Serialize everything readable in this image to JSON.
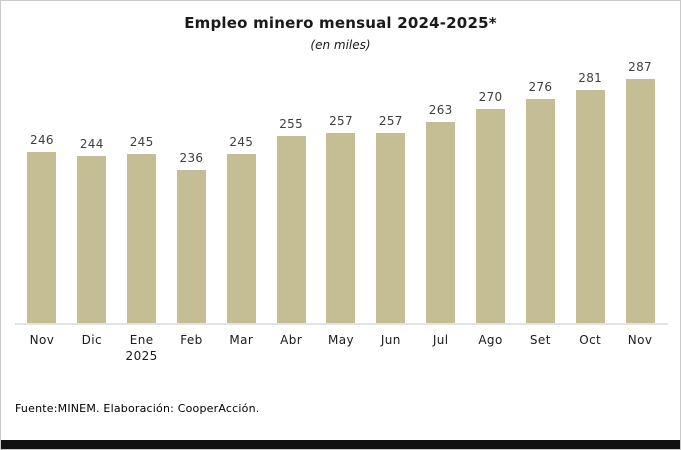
{
  "frame": {
    "background_color": "#ffffff",
    "border_color": "#c9c9c9",
    "bottom_bar_color": "#111111"
  },
  "chart_data": {
    "type": "bar",
    "title": "Empleo minero mensual 2024-2025*",
    "subtitle": "(en miles)",
    "categories": [
      "Nov",
      "Dic",
      "Ene\n2025",
      "Feb",
      "Mar",
      "Abr",
      "May",
      "Jun",
      "Jul",
      "Ago",
      "Set",
      "Oct",
      "Nov"
    ],
    "values": [
      246,
      244,
      245,
      236,
      245,
      255,
      257,
      257,
      263,
      270,
      276,
      281,
      287
    ],
    "data_labels": true,
    "bar_color": "#c5bd94",
    "value_label_color": "#3f3f3f",
    "axis_line_color": "#e3e3e3",
    "xlabel": "",
    "ylabel": "",
    "ylim": [
      150,
      300
    ],
    "grid": false,
    "legend_position": "none"
  },
  "footer": {
    "source_text": "Fuente:MINEM. Elaboración: CooperAcción."
  }
}
